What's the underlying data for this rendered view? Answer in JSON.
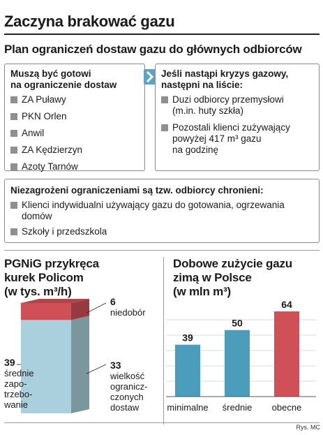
{
  "title": "Zaczyna brakować gazu",
  "subtitle": "Plan ograniczeń dostaw gazu do głównych odbiorców",
  "box_left": {
    "heading_line1": "Muszą być gotowi",
    "heading_line2": "na ograniczenie dostaw",
    "items": [
      "ZA Puławy",
      "PKN Orlen",
      "Anwil",
      "ZA Kędzierzyn",
      "Azoty Tarnów"
    ]
  },
  "box_right": {
    "heading_line1": "Jeśli nastąpi kryzys gazowy,",
    "heading_line2": "następni na liście:",
    "item1_line1": "Duzi odbiorcy przemysłowi",
    "item1_line2": "(m.in. huty szkła)",
    "item2_line1": "Pozostali klienci zużywający",
    "item2_line2": "powyżej 417 m³ gazu",
    "item2_line3": "na godzinę"
  },
  "box_bottom": {
    "heading": "Niezagrożeni ograniczeniami są tzw. odbiorcy chronieni:",
    "item1_line1": "Klienci indywidualni używający gazu do gotowania, ogrzewania",
    "item1_line2": "domów",
    "item2": "Szkoły i przedszkola"
  },
  "colors": {
    "blue": "#4a9dbb",
    "red": "#d05058",
    "light_blue": "#a9d0dc",
    "arrow": "#5ba4c9"
  },
  "credit": "Rys. MC",
  "chart_data": [
    {
      "type": "bar",
      "stacked": true,
      "title_line1": "PGNiG przykręca",
      "title_line2": "kurek Policom",
      "title_line3": "(w tys. m³/h)",
      "series": [
        {
          "value": 33,
          "value_label": "33",
          "label_lines": [
            "wielkość",
            "ogranicz-",
            "czonych",
            "dostaw"
          ],
          "color": "#a9d0dc"
        },
        {
          "value": 6,
          "value_label": "6",
          "label_lines": [
            "niedobór"
          ],
          "color": "#d05058"
        }
      ],
      "total": {
        "value": 39,
        "value_label": "39",
        "label_lines": [
          "średnie",
          "zapo-",
          "trzebo-",
          "wanie"
        ]
      }
    },
    {
      "type": "bar",
      "title_line1": "Dobowe zużycie gazu",
      "title_line2": "zimą w Polsce",
      "title_line3": "(w mln m³)",
      "categories": [
        "minimalne",
        "średnie",
        "obecne"
      ],
      "values": [
        39,
        50,
        64
      ],
      "value_labels": [
        "39",
        "50",
        "64"
      ],
      "colors": [
        "#4a9dbb",
        "#4a9dbb",
        "#d05058"
      ],
      "ylim": [
        0,
        64
      ]
    }
  ]
}
